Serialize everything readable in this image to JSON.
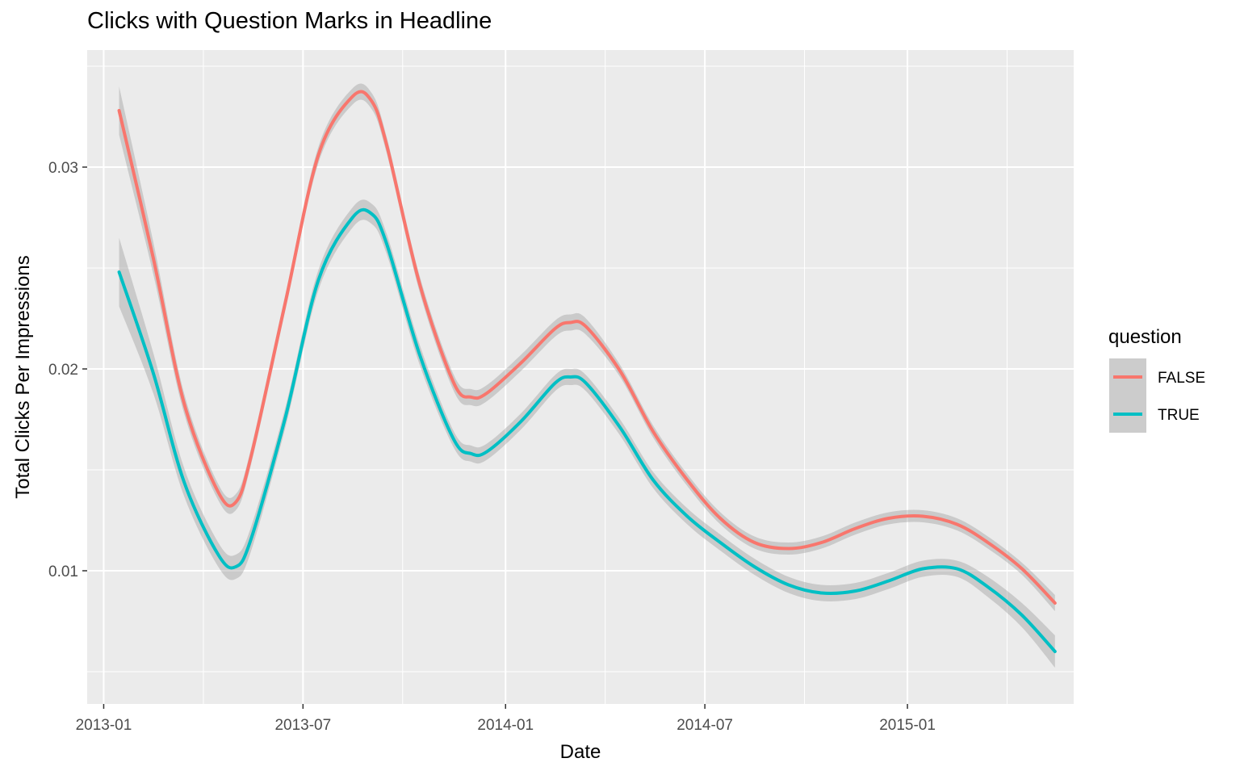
{
  "title": "Clicks with Question Marks in Headline",
  "chart_data": {
    "type": "line",
    "title": "Clicks with Question Marks in Headline",
    "xlabel": "Date",
    "ylabel": "Total Clicks Per Impressions",
    "x_ticks": [
      "2013-01",
      "2013-07",
      "2014-01",
      "2014-07",
      "2015-01"
    ],
    "y_ticks": [
      "0.01",
      "0.02",
      "0.03"
    ],
    "xlim": [
      "2012-12-17",
      "2015-06-01"
    ],
    "ylim": [
      0.0034,
      0.0358
    ],
    "grid": true,
    "smoothed": true,
    "confidence_band": true,
    "legend_title": "question",
    "legend_position": "right",
    "x": [
      "2013-01-15",
      "2013-02-15",
      "2013-03-15",
      "2013-04-15",
      "2013-05-01",
      "2013-05-15",
      "2013-06-15",
      "2013-07-15",
      "2013-08-15",
      "2013-09-01",
      "2013-09-15",
      "2013-10-15",
      "2013-11-15",
      "2013-12-01",
      "2013-12-15",
      "2014-01-15",
      "2014-02-15",
      "2014-03-01",
      "2014-03-15",
      "2014-04-15",
      "2014-05-15",
      "2014-06-15",
      "2014-07-15",
      "2014-08-15",
      "2014-09-15",
      "2014-10-15",
      "2014-11-15",
      "2014-12-15",
      "2015-01-15",
      "2015-02-15",
      "2015-03-15",
      "2015-04-15",
      "2015-05-15"
    ],
    "series": [
      {
        "name": "FALSE",
        "color": "#F8766D",
        "values": [
          0.0328,
          0.0255,
          0.0183,
          0.0139,
          0.0134,
          0.0157,
          0.0233,
          0.0306,
          0.0335,
          0.0333,
          0.0311,
          0.0242,
          0.0193,
          0.0186,
          0.0188,
          0.0203,
          0.022,
          0.0223,
          0.0221,
          0.0199,
          0.0169,
          0.0145,
          0.0126,
          0.0114,
          0.0111,
          0.0114,
          0.0121,
          0.0126,
          0.0127,
          0.0123,
          0.0114,
          0.0101,
          0.0084
        ],
        "ci_halfwidth": [
          0.0012,
          0.0008,
          0.0005,
          0.0004,
          0.0004,
          0.0004,
          0.0004,
          0.0004,
          0.0004,
          0.0004,
          0.0004,
          0.0004,
          0.0004,
          0.0004,
          0.0004,
          0.0004,
          0.0004,
          0.0004,
          0.0004,
          0.0003,
          0.0003,
          0.0003,
          0.0003,
          0.0003,
          0.0003,
          0.0003,
          0.0003,
          0.0003,
          0.0003,
          0.0003,
          0.0003,
          0.0003,
          0.0004
        ]
      },
      {
        "name": "TRUE",
        "color": "#00BFC4",
        "values": [
          0.0248,
          0.0198,
          0.0144,
          0.0108,
          0.0102,
          0.0116,
          0.0176,
          0.0244,
          0.0275,
          0.0277,
          0.0262,
          0.0207,
          0.0165,
          0.0158,
          0.0159,
          0.0174,
          0.0193,
          0.0196,
          0.0193,
          0.0171,
          0.0145,
          0.0127,
          0.0114,
          0.0102,
          0.0093,
          0.0089,
          0.009,
          0.0095,
          0.0101,
          0.0101,
          0.0092,
          0.0078,
          0.006
        ],
        "ci_halfwidth": [
          0.0017,
          0.001,
          0.0007,
          0.0006,
          0.0006,
          0.0006,
          0.0005,
          0.0005,
          0.0005,
          0.0005,
          0.0005,
          0.0005,
          0.0004,
          0.0004,
          0.0004,
          0.0004,
          0.0004,
          0.0004,
          0.0004,
          0.0004,
          0.0004,
          0.0004,
          0.0004,
          0.0004,
          0.0004,
          0.0004,
          0.0004,
          0.0004,
          0.0004,
          0.0004,
          0.0005,
          0.0006,
          0.0008
        ]
      }
    ]
  }
}
